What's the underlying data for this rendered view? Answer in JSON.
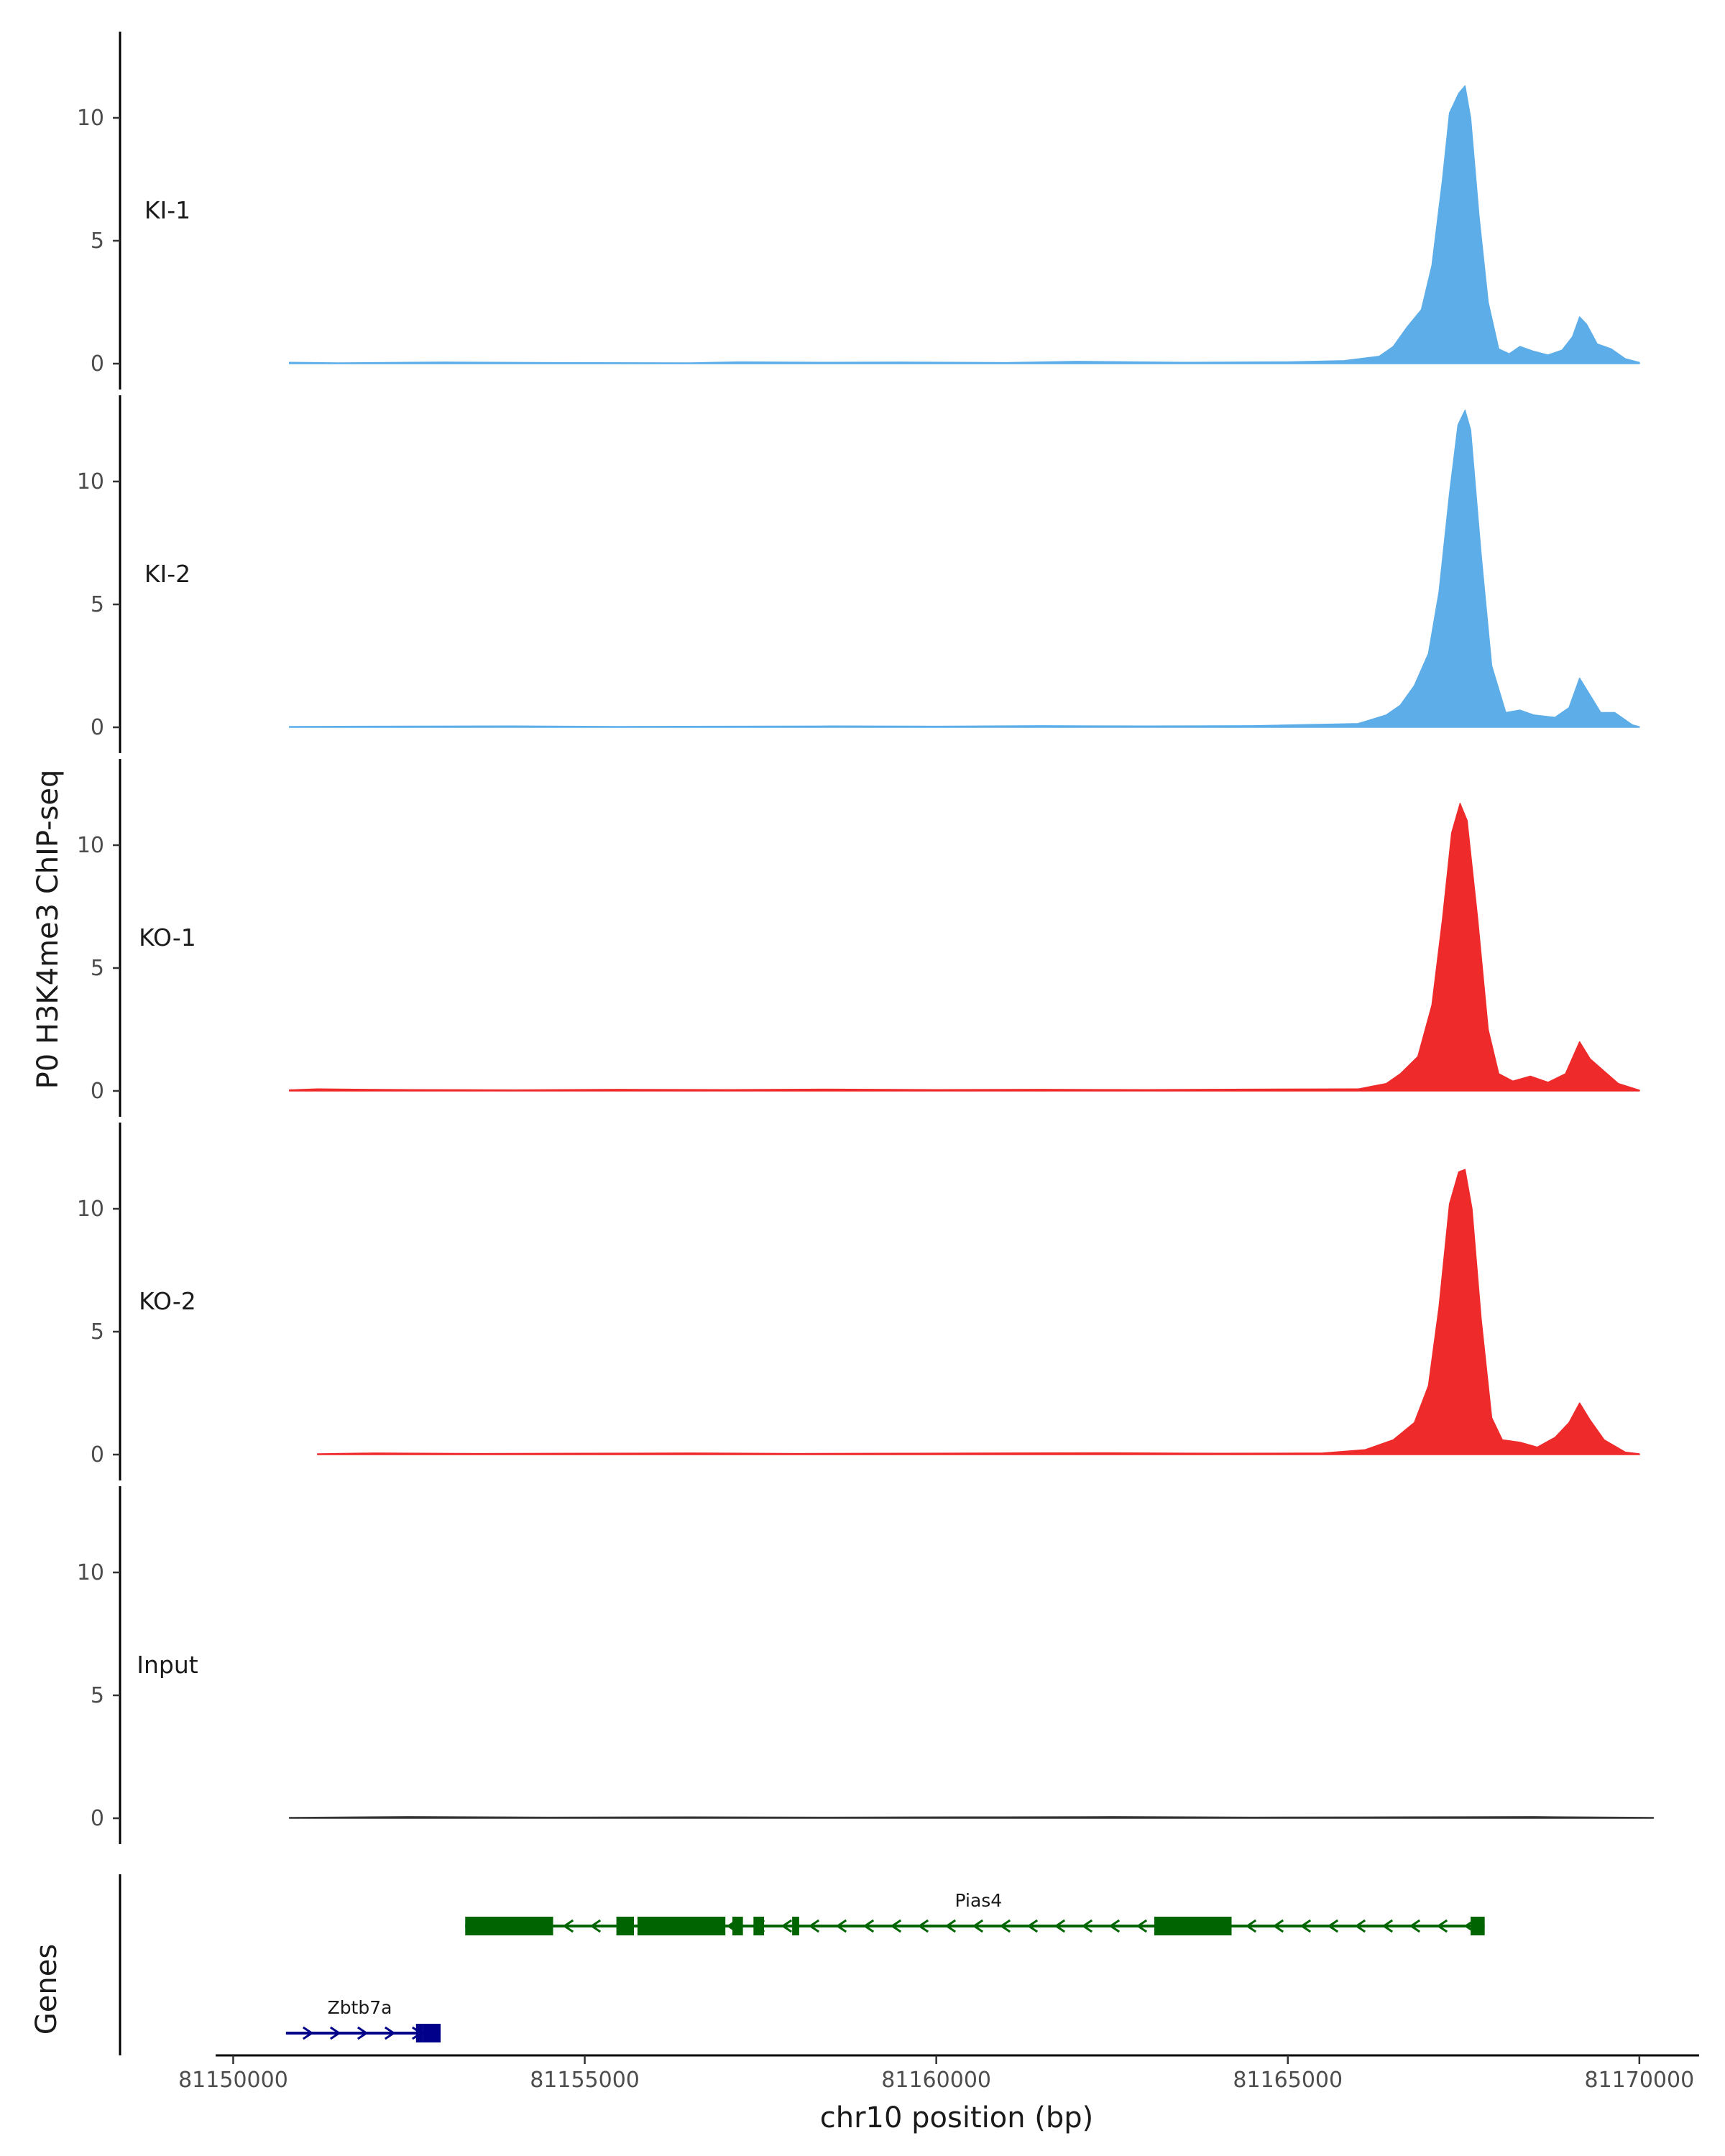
{
  "chart_data": {
    "type": "area",
    "ylabel": "P0 H3K4me3 ChIP-seq",
    "xlabel": "chr10 position (bp)",
    "xlim": [
      81149750,
      81170850
    ],
    "x_ticks": [
      {
        "value": 81150000,
        "label": "81150000"
      },
      {
        "value": 81155000,
        "label": "81155000"
      },
      {
        "value": 81160000,
        "label": "81160000"
      },
      {
        "value": 81165000,
        "label": "81165000"
      },
      {
        "value": 81170000,
        "label": "81170000"
      }
    ],
    "ylim": [
      0,
      13.5
    ],
    "y_ticks": [
      {
        "value": 0,
        "label": "0"
      },
      {
        "value": 5,
        "label": "5"
      },
      {
        "value": 10,
        "label": "10"
      }
    ],
    "grid": false,
    "tracks": [
      {
        "name": "KI-1",
        "color": "#5dade8",
        "points": [
          [
            81150800,
            0.05
          ],
          [
            81151500,
            0.03
          ],
          [
            81153000,
            0.06
          ],
          [
            81154500,
            0.04
          ],
          [
            81156500,
            0.03
          ],
          [
            81157200,
            0.07
          ],
          [
            81158500,
            0.05
          ],
          [
            81159500,
            0.06
          ],
          [
            81161000,
            0.04
          ],
          [
            81162000,
            0.09
          ],
          [
            81163500,
            0.05
          ],
          [
            81165000,
            0.07
          ],
          [
            81165800,
            0.12
          ],
          [
            81166300,
            0.3
          ],
          [
            81166500,
            0.7
          ],
          [
            81166700,
            1.5
          ],
          [
            81166900,
            2.2
          ],
          [
            81167050,
            4.0
          ],
          [
            81167200,
            7.5
          ],
          [
            81167300,
            10.2
          ],
          [
            81167430,
            11.0
          ],
          [
            81167520,
            11.3
          ],
          [
            81167600,
            10.0
          ],
          [
            81167720,
            6.0
          ],
          [
            81167850,
            2.5
          ],
          [
            81168000,
            0.6
          ],
          [
            81168150,
            0.4
          ],
          [
            81168300,
            0.7
          ],
          [
            81168500,
            0.5
          ],
          [
            81168700,
            0.35
          ],
          [
            81168900,
            0.55
          ],
          [
            81169050,
            1.1
          ],
          [
            81169150,
            1.9
          ],
          [
            81169250,
            1.6
          ],
          [
            81169400,
            0.8
          ],
          [
            81169600,
            0.6
          ],
          [
            81169800,
            0.2
          ],
          [
            81170000,
            0.05
          ]
        ]
      },
      {
        "name": "KI-2",
        "color": "#5dade8",
        "points": [
          [
            81150800,
            0.03
          ],
          [
            81152000,
            0.04
          ],
          [
            81154000,
            0.05
          ],
          [
            81155500,
            0.03
          ],
          [
            81157000,
            0.04
          ],
          [
            81158500,
            0.05
          ],
          [
            81160000,
            0.04
          ],
          [
            81161500,
            0.06
          ],
          [
            81163000,
            0.05
          ],
          [
            81164500,
            0.06
          ],
          [
            81166000,
            0.15
          ],
          [
            81166400,
            0.5
          ],
          [
            81166600,
            0.9
          ],
          [
            81166800,
            1.7
          ],
          [
            81167000,
            3.0
          ],
          [
            81167150,
            5.5
          ],
          [
            81167300,
            9.5
          ],
          [
            81167420,
            12.3
          ],
          [
            81167520,
            12.9
          ],
          [
            81167600,
            12.1
          ],
          [
            81167750,
            7.0
          ],
          [
            81167900,
            2.5
          ],
          [
            81168100,
            0.6
          ],
          [
            81168300,
            0.7
          ],
          [
            81168500,
            0.5
          ],
          [
            81168800,
            0.4
          ],
          [
            81169000,
            0.8
          ],
          [
            81169150,
            2.0
          ],
          [
            81169300,
            1.3
          ],
          [
            81169450,
            0.6
          ],
          [
            81169650,
            0.6
          ],
          [
            81169900,
            0.1
          ],
          [
            81170000,
            0.02
          ]
        ]
      },
      {
        "name": "KO-1",
        "color": "#ef2a2a",
        "points": [
          [
            81150800,
            0.04
          ],
          [
            81151200,
            0.08
          ],
          [
            81152500,
            0.05
          ],
          [
            81154000,
            0.04
          ],
          [
            81155500,
            0.06
          ],
          [
            81157000,
            0.05
          ],
          [
            81158500,
            0.07
          ],
          [
            81160000,
            0.05
          ],
          [
            81161500,
            0.06
          ],
          [
            81163000,
            0.05
          ],
          [
            81164500,
            0.07
          ],
          [
            81166000,
            0.08
          ],
          [
            81166400,
            0.3
          ],
          [
            81166600,
            0.7
          ],
          [
            81166850,
            1.4
          ],
          [
            81167050,
            3.5
          ],
          [
            81167200,
            7.0
          ],
          [
            81167330,
            10.5
          ],
          [
            81167450,
            11.7
          ],
          [
            81167550,
            11.0
          ],
          [
            81167700,
            7.0
          ],
          [
            81167850,
            2.5
          ],
          [
            81168000,
            0.7
          ],
          [
            81168200,
            0.4
          ],
          [
            81168450,
            0.6
          ],
          [
            81168700,
            0.35
          ],
          [
            81168950,
            0.7
          ],
          [
            81169150,
            2.0
          ],
          [
            81169300,
            1.3
          ],
          [
            81169500,
            0.8
          ],
          [
            81169700,
            0.3
          ],
          [
            81170000,
            0.03
          ]
        ]
      },
      {
        "name": "KO-2",
        "color": "#ef2a2a",
        "points": [
          [
            81151200,
            0.03
          ],
          [
            81152000,
            0.06
          ],
          [
            81153500,
            0.04
          ],
          [
            81155000,
            0.05
          ],
          [
            81156500,
            0.06
          ],
          [
            81158000,
            0.04
          ],
          [
            81159500,
            0.05
          ],
          [
            81161000,
            0.06
          ],
          [
            81162500,
            0.07
          ],
          [
            81164000,
            0.05
          ],
          [
            81165500,
            0.06
          ],
          [
            81166100,
            0.2
          ],
          [
            81166500,
            0.6
          ],
          [
            81166800,
            1.3
          ],
          [
            81167000,
            2.8
          ],
          [
            81167150,
            6.0
          ],
          [
            81167300,
            10.2
          ],
          [
            81167430,
            11.5
          ],
          [
            81167520,
            11.6
          ],
          [
            81167620,
            10.0
          ],
          [
            81167750,
            5.5
          ],
          [
            81167900,
            1.5
          ],
          [
            81168050,
            0.6
          ],
          [
            81168300,
            0.5
          ],
          [
            81168550,
            0.3
          ],
          [
            81168800,
            0.7
          ],
          [
            81169000,
            1.3
          ],
          [
            81169150,
            2.1
          ],
          [
            81169300,
            1.4
          ],
          [
            81169500,
            0.6
          ],
          [
            81169800,
            0.1
          ],
          [
            81170000,
            0.03
          ]
        ]
      },
      {
        "name": "Input",
        "color": "#333333",
        "points": [
          [
            81150800,
            0.03
          ],
          [
            81152500,
            0.06
          ],
          [
            81154500,
            0.04
          ],
          [
            81156500,
            0.05
          ],
          [
            81158500,
            0.04
          ],
          [
            81160500,
            0.05
          ],
          [
            81162500,
            0.06
          ],
          [
            81164500,
            0.04
          ],
          [
            81166500,
            0.05
          ],
          [
            81168500,
            0.06
          ],
          [
            81170200,
            0.03
          ]
        ]
      }
    ],
    "genes_track": {
      "label": "Genes",
      "genes": [
        {
          "name": "Pias4",
          "strand": "-",
          "color": "#006400",
          "row": 1,
          "start": 81153300,
          "end": 81167800,
          "exons": [
            [
              81153300,
              81154550
            ],
            [
              81155450,
              81155700
            ],
            [
              81155750,
              81157000
            ],
            [
              81157100,
              81157250
            ],
            [
              81157400,
              81157550
            ],
            [
              81157950,
              81158050
            ],
            [
              81163100,
              81164200
            ],
            [
              81167600,
              81167800
            ]
          ]
        },
        {
          "name": "Zbtb7a",
          "strand": "+",
          "color": "#00008b",
          "row": 2,
          "start": 81150750,
          "end": 81152950,
          "exons": [
            [
              81152600,
              81152700
            ],
            [
              81152700,
              81152950
            ]
          ]
        }
      ]
    }
  }
}
